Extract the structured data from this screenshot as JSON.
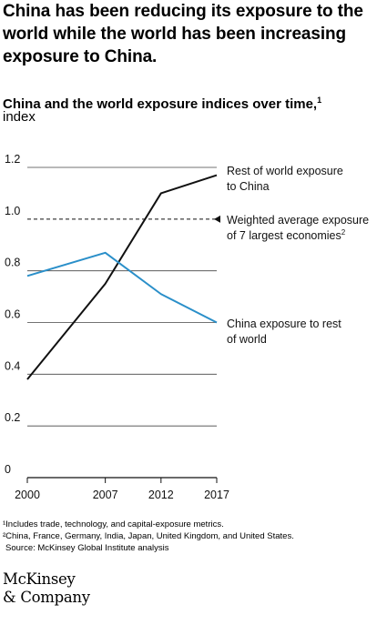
{
  "headline": "China has been reducing its exposure to the world while the world has been increasing exposure to China.",
  "chart_data": {
    "type": "line",
    "title": "China and the world exposure indices over time,",
    "title_note": "1",
    "unit": "index",
    "x": [
      "2000",
      "2007",
      "2012",
      "2017"
    ],
    "x_values": [
      2000,
      2007,
      2012,
      2017
    ],
    "ylim": [
      0,
      1.2
    ],
    "yticks": [
      "1.2",
      "1.0",
      "0.8",
      "0.6",
      "0.4",
      "0.2",
      "0"
    ],
    "grid": true,
    "series": [
      {
        "name": "Rest of world exposure to China",
        "label_lines": [
          "Rest of world exposure",
          "to China"
        ],
        "values": [
          0.38,
          0.75,
          1.1,
          1.17
        ],
        "color": "#111111"
      },
      {
        "name": "China exposure to rest of world",
        "label_lines": [
          "China exposure to rest",
          "of world"
        ],
        "values": [
          0.78,
          0.87,
          0.71,
          0.6
        ],
        "color": "#2a8fc9"
      }
    ],
    "reference_line": {
      "value": 1.0,
      "label_lines": [
        "Weighted average exposure",
        "of 7 largest economies"
      ],
      "label_note": "2",
      "color": "#111111"
    }
  },
  "footnotes": {
    "note1": "¹Includes trade, technology, and capital-exposure metrics.",
    "note2": "²China, France, Germany, India, Japan, United Kingdom, and United States.",
    "source": "Source: McKinsey Global Institute analysis"
  },
  "logo": {
    "line1": "McKinsey",
    "line2": "& Company"
  }
}
